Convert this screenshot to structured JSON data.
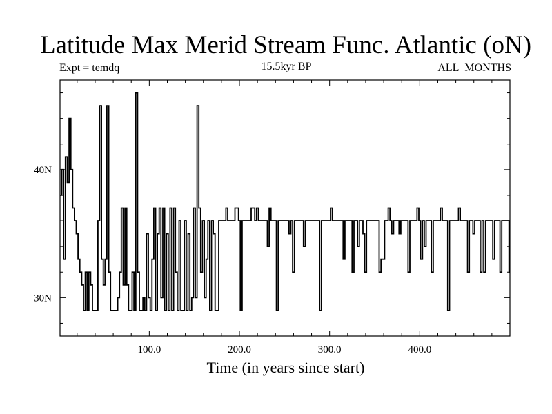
{
  "header": {
    "title": "Latitude Max Merid Stream Func. Atlantic (oN)",
    "left": "Expt = temdq",
    "center": "15.5kyr BP",
    "right": "ALL_MONTHS"
  },
  "chart_data": {
    "type": "line",
    "title": "Latitude Max Merid Stream Func. Atlantic (oN)",
    "xlabel": "Time (in years since start)",
    "ylabel": "",
    "xlim": [
      1,
      500
    ],
    "ylim": [
      27,
      47
    ],
    "x_ticks": [
      100,
      200,
      300,
      400
    ],
    "x_tick_labels": [
      "100.0",
      "200.0",
      "300.0",
      "400.0"
    ],
    "y_ticks": [
      30,
      40
    ],
    "y_tick_labels": [
      "30N",
      "40N"
    ],
    "series": [
      {
        "name": "",
        "x": [
          1,
          3,
          5,
          7,
          9,
          11,
          13,
          15,
          17,
          19,
          21,
          23,
          25,
          27,
          29,
          31,
          33,
          35,
          37,
          39,
          41,
          43,
          45,
          47,
          49,
          51,
          53,
          55,
          57,
          59,
          61,
          63,
          65,
          67,
          69,
          71,
          73,
          75,
          77,
          79,
          81,
          83,
          85,
          87,
          89,
          91,
          93,
          95,
          97,
          99,
          101,
          103,
          105,
          107,
          109,
          111,
          113,
          115,
          117,
          119,
          121,
          123,
          125,
          127,
          129,
          131,
          133,
          135,
          137,
          139,
          141,
          143,
          145,
          147,
          149,
          151,
          153,
          155,
          157,
          159,
          161,
          163,
          165,
          167,
          169,
          171,
          173,
          175,
          177,
          179,
          181,
          183,
          185,
          187,
          189,
          191,
          193,
          195,
          197,
          199,
          201,
          203,
          205,
          207,
          209,
          211,
          213,
          215,
          217,
          219,
          221,
          223,
          225,
          227,
          229,
          231,
          233,
          235,
          237,
          239,
          241,
          243,
          245,
          247,
          249,
          251,
          253,
          255,
          257,
          259,
          261,
          263,
          265,
          267,
          269,
          271,
          273,
          275,
          277,
          279,
          281,
          283,
          285,
          287,
          289,
          291,
          293,
          295,
          297,
          299,
          301,
          303,
          305,
          307,
          309,
          311,
          313,
          315,
          317,
          319,
          321,
          323,
          325,
          327,
          329,
          331,
          333,
          335,
          337,
          339,
          341,
          343,
          345,
          347,
          349,
          351,
          353,
          355,
          357,
          359,
          361,
          363,
          365,
          367,
          369,
          371,
          373,
          375,
          377,
          379,
          381,
          383,
          385,
          387,
          389,
          391,
          393,
          395,
          397,
          399,
          401,
          403,
          405,
          407,
          409,
          411,
          413,
          415,
          417,
          419,
          421,
          423,
          425,
          427,
          429,
          431,
          433,
          435,
          437,
          439,
          441,
          443,
          445,
          447,
          449,
          451,
          453,
          455,
          457,
          459,
          461,
          463,
          465,
          467,
          469,
          471,
          473,
          475,
          477,
          479,
          481,
          483,
          485,
          487,
          489,
          491,
          493,
          495,
          497,
          499
        ],
        "y": [
          38,
          40,
          33,
          41,
          39,
          44,
          40,
          37,
          36,
          35,
          33,
          32,
          31,
          29,
          32,
          29,
          32,
          31,
          29,
          29,
          29,
          36,
          45,
          33,
          31,
          33,
          45,
          32,
          29,
          29,
          29,
          29,
          30,
          32,
          37,
          31,
          37,
          31,
          29,
          29,
          32,
          29,
          46,
          32,
          29,
          29,
          30,
          29,
          35,
          30,
          29,
          33,
          37,
          29,
          35,
          37,
          30,
          37,
          29,
          35,
          29,
          37,
          29,
          37,
          32,
          29,
          36,
          29,
          29,
          36,
          29,
          35,
          29,
          30,
          37,
          30,
          45,
          37,
          32,
          36,
          30,
          33,
          36,
          29,
          36,
          35,
          29,
          29,
          36,
          36,
          36,
          36,
          37,
          36,
          36,
          36,
          36,
          37,
          37,
          36,
          29,
          36,
          36,
          36,
          36,
          36,
          37,
          37,
          36,
          37,
          36,
          36,
          36,
          36,
          36,
          34,
          37,
          36,
          36,
          36,
          29,
          36,
          36,
          36,
          36,
          36,
          36,
          35,
          36,
          32,
          36,
          36,
          36,
          36,
          36,
          34,
          36,
          36,
          36,
          36,
          36,
          36,
          36,
          36,
          29,
          36,
          36,
          36,
          36,
          36,
          37,
          36,
          36,
          36,
          36,
          36,
          36,
          33,
          36,
          36,
          36,
          36,
          32,
          36,
          36,
          34,
          36,
          36,
          35,
          32,
          36,
          36,
          36,
          36,
          36,
          36,
          36,
          32,
          33,
          33,
          36,
          36,
          37,
          36,
          35,
          36,
          36,
          36,
          35,
          36,
          36,
          36,
          36,
          32,
          36,
          36,
          36,
          36,
          37,
          36,
          33,
          36,
          34,
          36,
          36,
          36,
          32,
          36,
          36,
          36,
          36,
          37,
          36,
          36,
          36,
          29,
          36,
          36,
          36,
          36,
          36,
          37,
          36,
          36,
          36,
          36,
          32,
          36,
          36,
          35,
          36,
          36,
          36,
          32,
          36,
          32,
          36,
          36,
          36,
          36,
          33,
          36,
          36,
          36,
          32,
          36,
          36,
          36,
          36,
          32
        ]
      }
    ]
  }
}
